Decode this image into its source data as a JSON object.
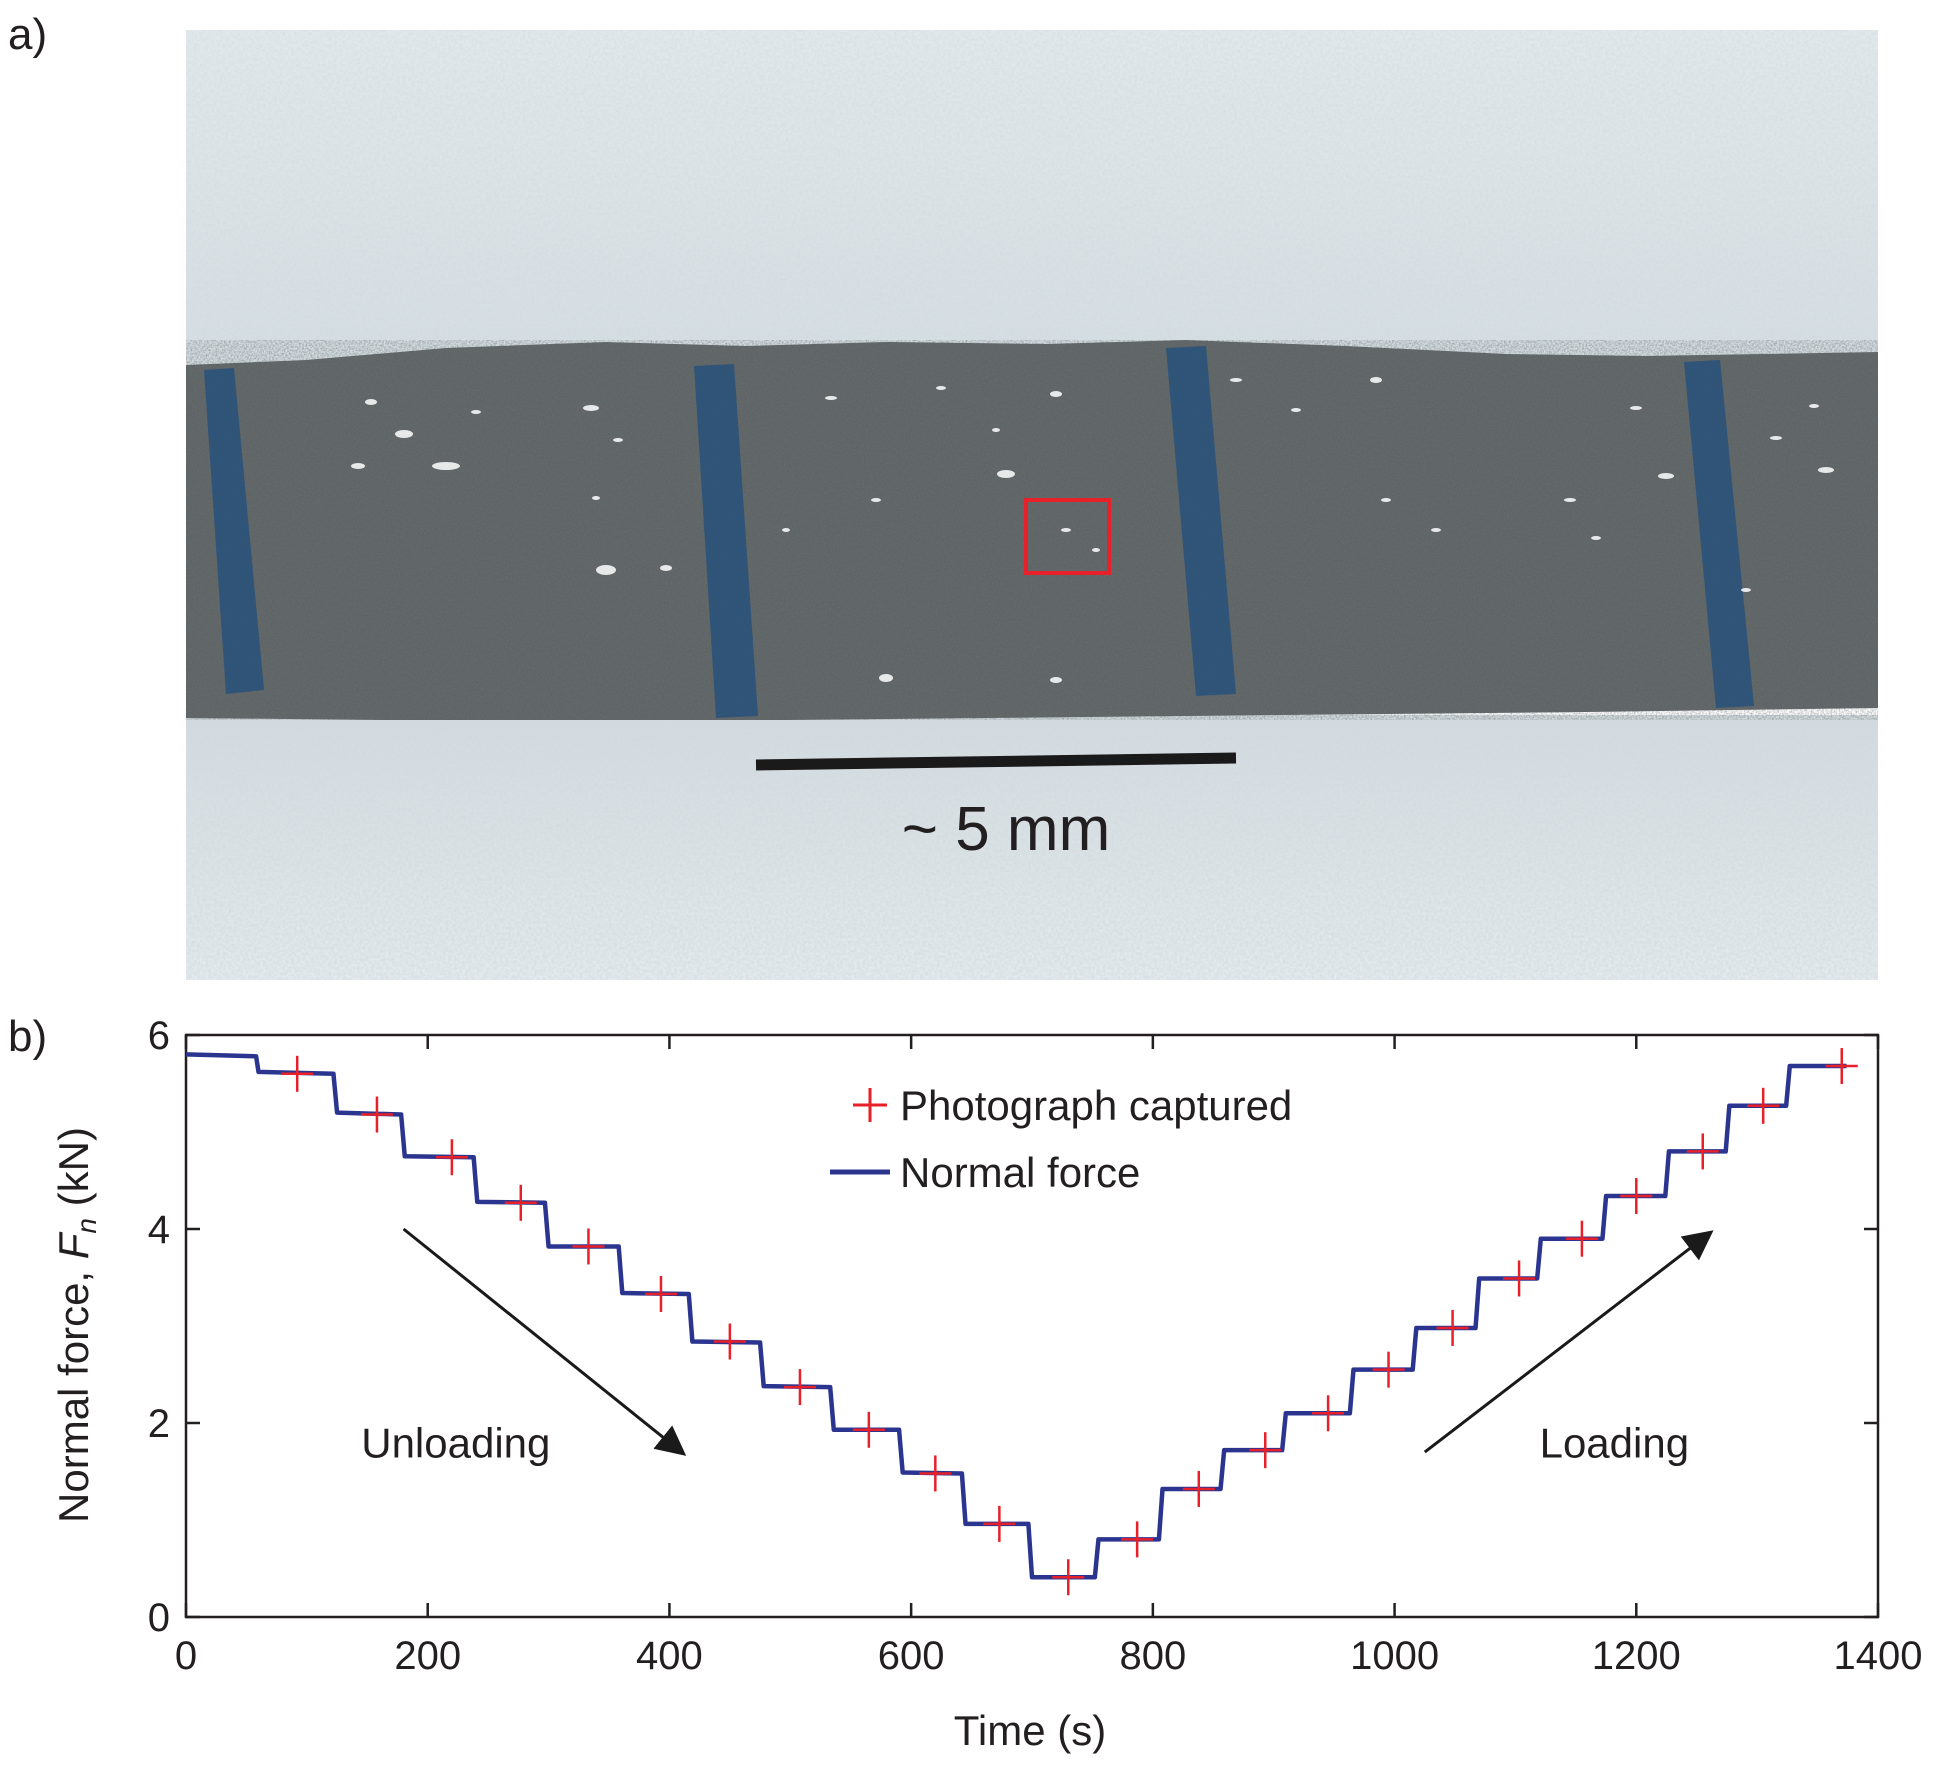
{
  "panels": {
    "a": "a)",
    "b": "b)"
  },
  "photo": {
    "scale_bar_label": "~ 5 mm",
    "colors": {
      "gauge_block": "#5f6465",
      "substrate": "#dfe6e9",
      "blue_marks": "#1f4f7e",
      "roi_box": "#e8202a",
      "scale_bar": "#1a1a1a"
    }
  },
  "chart_data": {
    "type": "line",
    "xlabel": "Time (s)",
    "ylabel_main": "Normal force, ",
    "ylabel_symbol": "F",
    "ylabel_subscript": "n",
    "ylabel_unit": " (kN)",
    "xlim": [
      0,
      1400
    ],
    "ylim": [
      0,
      6
    ],
    "x_ticks": [
      0,
      200,
      400,
      600,
      800,
      1000,
      1200,
      1400
    ],
    "y_ticks": [
      0,
      2,
      4,
      6
    ],
    "grid": false,
    "legend_position": "top-center",
    "series": [
      {
        "name": "Normal force",
        "kind": "line",
        "color": "#2b3590",
        "x": [
          0,
          58,
          60,
          122,
          125,
          178,
          181,
          238,
          241,
          297,
          300,
          358,
          361,
          416,
          419,
          475,
          478,
          533,
          536,
          590,
          593,
          642,
          645,
          697,
          700,
          752,
          755,
          805,
          808,
          856,
          859,
          907,
          910,
          963,
          966,
          1015,
          1018,
          1067,
          1070,
          1118,
          1121,
          1172,
          1175,
          1224,
          1227,
          1274,
          1277,
          1324,
          1327,
          1374
        ],
        "y": [
          5.8,
          5.78,
          5.62,
          5.6,
          5.2,
          5.18,
          4.75,
          4.74,
          4.28,
          4.27,
          3.82,
          3.82,
          3.34,
          3.33,
          2.84,
          2.83,
          2.38,
          2.37,
          1.93,
          1.93,
          1.49,
          1.48,
          0.96,
          0.96,
          0.41,
          0.41,
          0.8,
          0.8,
          1.32,
          1.32,
          1.72,
          1.72,
          2.1,
          2.1,
          2.55,
          2.55,
          2.98,
          2.98,
          3.49,
          3.49,
          3.9,
          3.9,
          4.34,
          4.34,
          4.8,
          4.8,
          5.27,
          5.27,
          5.68,
          5.68
        ]
      },
      {
        "name": "Photograph captured",
        "kind": "marker",
        "color": "#e8202a",
        "x": [
          92,
          158,
          220,
          277,
          333,
          393,
          450,
          508,
          565,
          620,
          673,
          730,
          787,
          838,
          893,
          945,
          995,
          1048,
          1103,
          1155,
          1200,
          1255,
          1305,
          1370
        ],
        "y": [
          5.6,
          5.18,
          4.74,
          4.27,
          3.82,
          3.33,
          2.84,
          2.37,
          1.93,
          1.48,
          0.96,
          0.41,
          0.8,
          1.32,
          1.72,
          2.1,
          2.55,
          2.98,
          3.49,
          3.9,
          4.34,
          4.8,
          5.27,
          5.68
        ]
      }
    ],
    "annotations": [
      {
        "text": "Unloading",
        "arrow_from": [
          180,
          4.0
        ],
        "arrow_to": [
          410,
          1.7
        ]
      },
      {
        "text": "Loading",
        "arrow_from": [
          1025,
          1.7
        ],
        "arrow_to": [
          1260,
          3.95
        ]
      }
    ]
  }
}
